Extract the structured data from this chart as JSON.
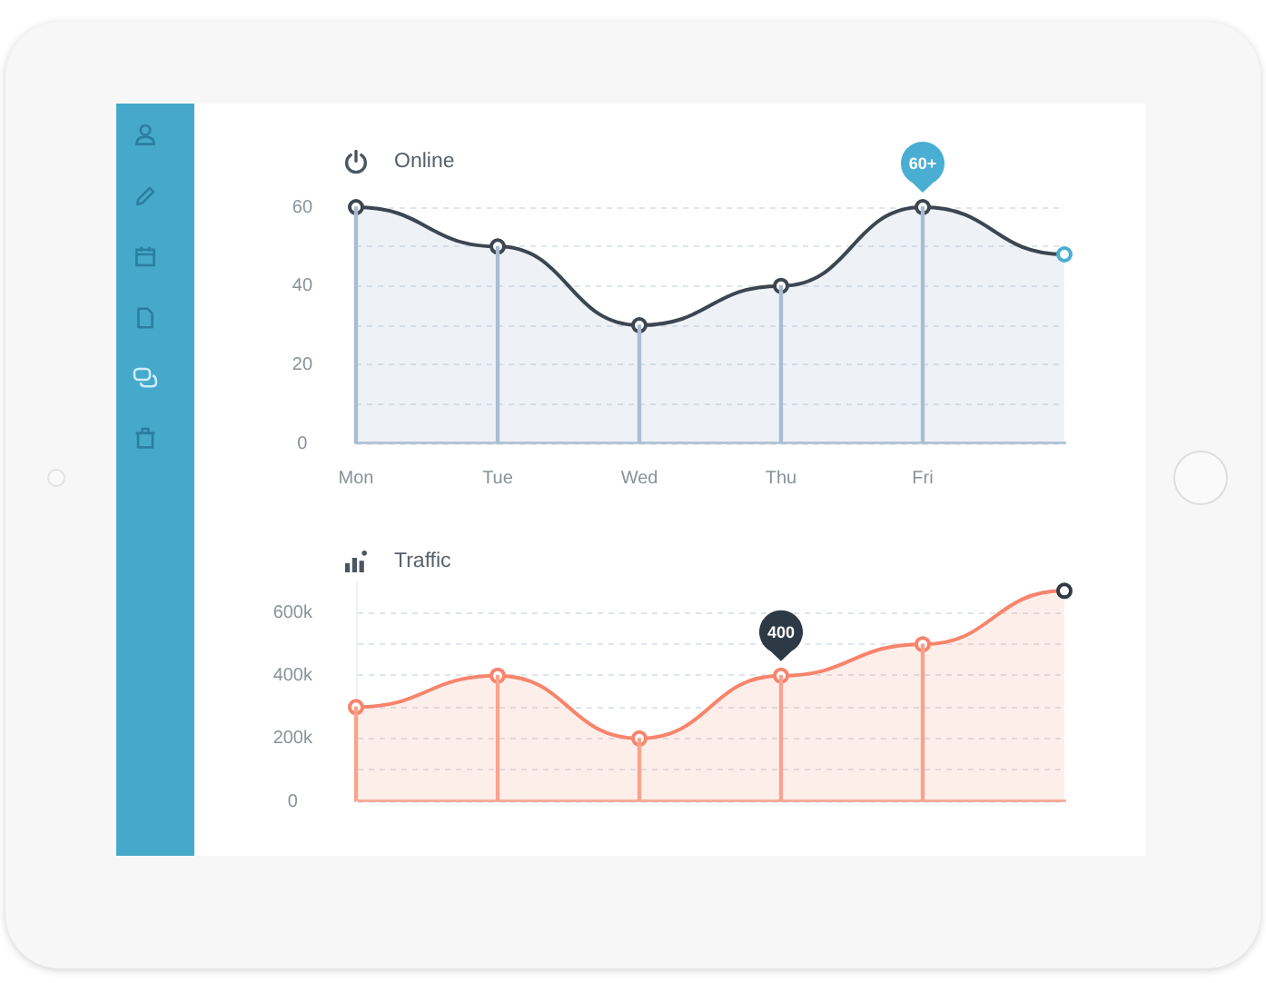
{
  "chart_data": [
    {
      "type": "area",
      "title": "Online",
      "categories": [
        "Mon",
        "Tue",
        "Wed",
        "Thu",
        "Fri",
        null
      ],
      "series": [
        {
          "color": "#3d4650",
          "colors": [
            "#3d4650",
            "#3d4650",
            "#3d4650",
            "#3d4650",
            "#3d4650",
            "#4aaed3"
          ],
          "values": [
            60,
            50,
            30,
            40,
            60,
            48
          ],
          "value_labels": [
            null,
            null,
            null,
            null,
            "60+",
            null
          ]
        },
        {
          "type": "bar",
          "color": "#a9bcd3",
          "values": [
            60,
            50,
            30,
            40,
            60,
            null
          ]
        }
      ],
      "ylim": [
        0,
        60
      ],
      "yticks": [
        0,
        {
          "value": 10,
          "label": null
        },
        20,
        {
          "value": 30,
          "label": null
        },
        40,
        {
          "value": 50,
          "label": null
        },
        60
      ],
      "grid": "y",
      "marker": "circle"
    },
    {
      "type": "area",
      "title": "Traffic",
      "categories": [
        null,
        null,
        null,
        null,
        null,
        null
      ],
      "series": [
        {
          "color": "#f7846b",
          "colors": [
            "#f7846b",
            "#f7846b",
            "#f7846b",
            "#f7846b",
            "#f7846b",
            "#2d3a45"
          ],
          "values": [
            300,
            400,
            200,
            400,
            500,
            670
          ],
          "value_labels": [
            null,
            null,
            null,
            "400",
            null,
            null
          ]
        },
        {
          "type": "bar",
          "color": "#f9a38f",
          "values": [
            300,
            400,
            200,
            400,
            500,
            null
          ]
        }
      ],
      "ylim": [
        0,
        700
      ],
      "yticks": [
        0,
        {
          "value": 100,
          "label": null
        },
        {
          "value": 200,
          "label": "200k"
        },
        {
          "value": 300,
          "label": null
        },
        {
          "value": 400,
          "label": "400k"
        },
        {
          "value": 500,
          "label": null
        },
        {
          "value": 600,
          "label": "600k"
        }
      ],
      "grid": "y",
      "marker": "circle",
      "tick_labels": "y"
    }
  ]
}
